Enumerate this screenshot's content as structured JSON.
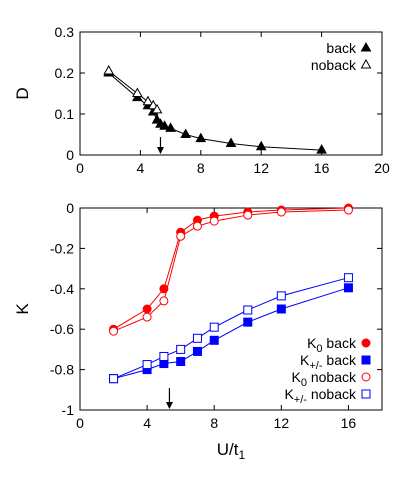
{
  "chart_data": [
    {
      "type": "line",
      "ylabel": "D",
      "xlabel": "",
      "xlim": [
        0,
        20
      ],
      "ylim": [
        0,
        0.3
      ],
      "xticks": [
        "0",
        "4",
        "8",
        "12",
        "16",
        "20"
      ],
      "yticks": [
        "0",
        "0.1",
        "0.2",
        "0.3"
      ],
      "legend_position": "top-right",
      "arrow_at_x": 5.33,
      "series": [
        {
          "name": "back",
          "color": "#000000",
          "marker": "filled-triangle",
          "x": [
            1.9,
            3.8,
            4.5,
            4.85,
            5.1,
            5.33,
            5.6,
            6.0,
            7.0,
            8.0,
            10.0,
            12.0,
            16.0
          ],
          "y": [
            0.2,
            0.14,
            0.12,
            0.105,
            0.085,
            0.075,
            0.07,
            0.065,
            0.05,
            0.04,
            0.028,
            0.02,
            0.012
          ]
        },
        {
          "name": "noback",
          "color": "#000000",
          "marker": "open-triangle",
          "x": [
            1.9,
            3.8,
            4.5,
            4.85,
            5.1
          ],
          "y": [
            0.205,
            0.15,
            0.13,
            0.12,
            0.11
          ]
        }
      ]
    },
    {
      "type": "line",
      "ylabel": "K",
      "xlabel": "U/t1",
      "xlim": [
        0,
        18
      ],
      "ylim": [
        -1,
        0
      ],
      "xticks": [
        "0",
        "4",
        "8",
        "12",
        "16"
      ],
      "yticks": [
        "-1",
        "-0.8",
        "-0.6",
        "-0.4",
        "-0.2",
        "0"
      ],
      "legend_position": "bottom-right",
      "arrow_at_x": 5.33,
      "series": [
        {
          "name": "K0 back",
          "color": "#ff0000",
          "marker": "filled-circle",
          "x": [
            2,
            4,
            5,
            6,
            7,
            8,
            10,
            12,
            16
          ],
          "y": [
            -0.6,
            -0.5,
            -0.4,
            -0.12,
            -0.06,
            -0.04,
            -0.02,
            -0.01,
            0.0
          ]
        },
        {
          "name": "K+/- back",
          "color": "#0000ff",
          "marker": "filled-square",
          "x": [
            2,
            4,
            5,
            6,
            7,
            8,
            10,
            12,
            16
          ],
          "y": [
            -0.845,
            -0.8,
            -0.77,
            -0.76,
            -0.71,
            -0.655,
            -0.565,
            -0.5,
            -0.395
          ]
        },
        {
          "name": "K0 noback",
          "color": "#ff0000",
          "marker": "open-circle",
          "x": [
            2,
            4,
            5,
            6,
            7,
            8,
            10,
            12,
            16
          ],
          "y": [
            -0.61,
            -0.54,
            -0.46,
            -0.14,
            -0.09,
            -0.065,
            -0.035,
            -0.02,
            -0.01
          ]
        },
        {
          "name": "K+/- noback",
          "color": "#0000ff",
          "marker": "open-square",
          "x": [
            2,
            4,
            5,
            6,
            7,
            8,
            10,
            12,
            16
          ],
          "y": [
            -0.845,
            -0.775,
            -0.735,
            -0.7,
            -0.645,
            -0.59,
            -0.505,
            -0.435,
            -0.345
          ]
        }
      ]
    }
  ]
}
